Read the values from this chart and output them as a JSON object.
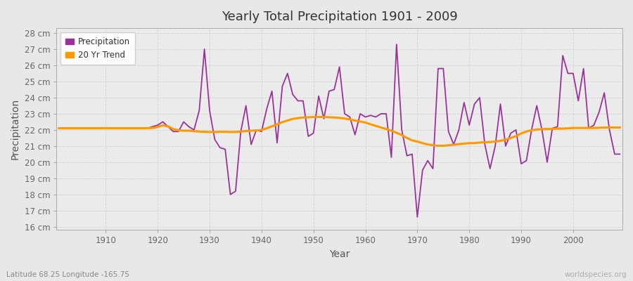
{
  "title": "Yearly Total Precipitation 1901 - 2009",
  "xlabel": "Year",
  "ylabel": "Precipitation",
  "subtitle": "Latitude 68.25 Longitude -165.75",
  "watermark": "worldspecies.org",
  "ylim": [
    15.8,
    28.3
  ],
  "xlim": [
    1900.5,
    2009.5
  ],
  "yticks": [
    16,
    17,
    18,
    19,
    20,
    21,
    22,
    23,
    24,
    25,
    26,
    27,
    28
  ],
  "xticks": [
    1910,
    1920,
    1930,
    1940,
    1950,
    1960,
    1970,
    1980,
    1990,
    2000
  ],
  "precip_color": "#993399",
  "trend_color": "#ff9900",
  "fig_bg_color": "#e8e8e8",
  "plot_bg_color": "#ebebeb",
  "grid_color": "#d0d0d0",
  "years": [
    1901,
    1902,
    1903,
    1904,
    1905,
    1906,
    1907,
    1908,
    1909,
    1910,
    1911,
    1912,
    1913,
    1914,
    1915,
    1916,
    1917,
    1918,
    1919,
    1920,
    1921,
    1922,
    1923,
    1924,
    1925,
    1926,
    1927,
    1928,
    1929,
    1930,
    1931,
    1932,
    1933,
    1934,
    1935,
    1936,
    1937,
    1938,
    1939,
    1940,
    1941,
    1942,
    1943,
    1944,
    1945,
    1946,
    1947,
    1948,
    1949,
    1950,
    1951,
    1952,
    1953,
    1954,
    1955,
    1956,
    1957,
    1958,
    1959,
    1960,
    1961,
    1962,
    1963,
    1964,
    1965,
    1966,
    1967,
    1968,
    1969,
    1970,
    1971,
    1972,
    1973,
    1974,
    1975,
    1976,
    1977,
    1978,
    1979,
    1980,
    1981,
    1982,
    1983,
    1984,
    1985,
    1986,
    1987,
    1988,
    1989,
    1990,
    1991,
    1992,
    1993,
    1994,
    1995,
    1996,
    1997,
    1998,
    1999,
    2000,
    2001,
    2002,
    2003,
    2004,
    2005,
    2006,
    2007,
    2008,
    2009
  ],
  "precip": [
    22.1,
    22.1,
    22.1,
    22.1,
    22.1,
    22.1,
    22.1,
    22.1,
    22.1,
    22.1,
    22.1,
    22.1,
    22.1,
    22.1,
    22.1,
    22.1,
    22.1,
    22.1,
    22.2,
    22.3,
    22.5,
    22.2,
    21.9,
    21.9,
    22.5,
    22.2,
    22.0,
    23.2,
    27.0,
    23.2,
    21.4,
    20.9,
    20.8,
    18.0,
    18.2,
    21.9,
    23.5,
    21.1,
    22.0,
    21.9,
    23.3,
    24.4,
    21.2,
    24.7,
    25.5,
    24.2,
    23.8,
    23.8,
    21.6,
    21.8,
    24.1,
    22.7,
    24.4,
    24.5,
    25.9,
    23.0,
    22.8,
    21.7,
    23.0,
    22.8,
    22.9,
    22.8,
    23.0,
    23.0,
    20.3,
    27.3,
    22.0,
    20.4,
    20.5,
    16.6,
    19.5,
    20.1,
    19.6,
    25.8,
    25.8,
    21.9,
    21.1,
    22.0,
    23.7,
    22.3,
    23.6,
    24.0,
    21.1,
    19.6,
    21.0,
    23.6,
    21.0,
    21.8,
    22.0,
    19.9,
    20.1,
    22.0,
    23.5,
    22.0,
    20.0,
    22.1,
    22.2,
    26.6,
    25.5,
    25.5,
    23.8,
    25.8,
    22.1,
    22.3,
    23.1,
    24.3,
    22.0,
    20.5,
    20.5
  ],
  "trend": [
    22.1,
    22.1,
    22.1,
    22.1,
    22.1,
    22.1,
    22.1,
    22.1,
    22.1,
    22.1,
    22.1,
    22.1,
    22.1,
    22.1,
    22.1,
    22.1,
    22.1,
    22.1,
    22.12,
    22.18,
    22.28,
    22.22,
    22.05,
    21.98,
    21.95,
    21.95,
    21.92,
    21.9,
    21.88,
    21.87,
    21.87,
    21.88,
    21.88,
    21.87,
    21.87,
    21.9,
    21.93,
    21.95,
    21.97,
    22.0,
    22.1,
    22.22,
    22.35,
    22.48,
    22.58,
    22.68,
    22.73,
    22.77,
    22.78,
    22.8,
    22.8,
    22.8,
    22.78,
    22.77,
    22.75,
    22.7,
    22.65,
    22.58,
    22.52,
    22.45,
    22.35,
    22.25,
    22.15,
    22.05,
    21.95,
    21.82,
    21.68,
    21.5,
    21.35,
    21.28,
    21.18,
    21.1,
    21.05,
    21.02,
    21.02,
    21.05,
    21.08,
    21.12,
    21.15,
    21.18,
    21.18,
    21.22,
    21.23,
    21.25,
    21.28,
    21.32,
    21.4,
    21.5,
    21.62,
    21.78,
    21.9,
    21.98,
    22.02,
    22.05,
    22.06,
    22.07,
    22.08,
    22.08,
    22.1,
    22.12,
    22.12,
    22.12,
    22.12,
    22.12,
    22.13,
    22.15,
    22.15,
    22.15,
    22.15
  ]
}
